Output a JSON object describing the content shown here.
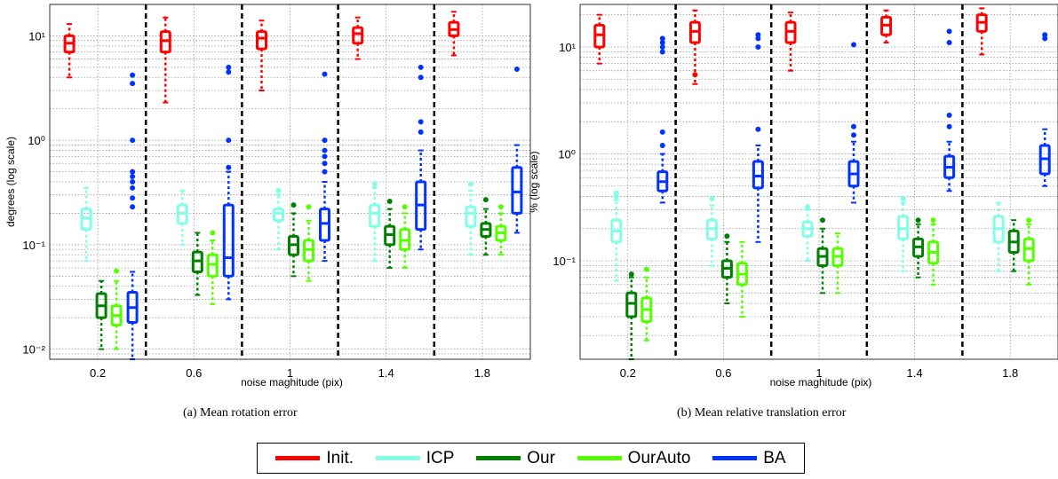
{
  "chart_data": [
    {
      "type": "box",
      "caption": "(a)  Mean rotation error",
      "ylabel": "degrees (log scale)",
      "xlabel": "noise maghitude (pix)",
      "yscale": "log",
      "ylim": [
        0.008,
        20
      ],
      "ytick_values": [
        0.01,
        0.1,
        1,
        10
      ],
      "ytick_labels": [
        "10⁻²",
        "10⁻¹",
        "10⁰",
        "10¹"
      ],
      "grid": true,
      "groups": [
        "0.2",
        "0.6",
        "1",
        "1.4",
        "1.8"
      ],
      "series": [
        {
          "name": "Init.",
          "color": "#ff0000",
          "stats": [
            {
              "lw": 4,
              "q1": 7,
              "med": 8.5,
              "q3": 10,
              "uw": 13,
              "out": []
            },
            {
              "lw": 2.3,
              "q1": 7,
              "med": 9,
              "q3": 11,
              "uw": 15,
              "out": []
            },
            {
              "lw": 3,
              "q1": 7.5,
              "med": 9.5,
              "q3": 11,
              "uw": 14,
              "out": []
            },
            {
              "lw": 6,
              "q1": 8.5,
              "med": 10.5,
              "q3": 12,
              "uw": 15,
              "out": []
            },
            {
              "lw": 6.5,
              "q1": 10,
              "med": 11.5,
              "q3": 13.5,
              "uw": 17,
              "out": []
            }
          ]
        },
        {
          "name": "ICP",
          "color": "#80ffe6",
          "stats": [
            {
              "lw": 0.07,
              "q1": 0.14,
              "med": 0.18,
              "q3": 0.22,
              "uw": 0.35,
              "out": []
            },
            {
              "lw": 0.1,
              "q1": 0.16,
              "med": 0.2,
              "q3": 0.24,
              "uw": 0.33,
              "out": []
            },
            {
              "lw": 0.09,
              "q1": 0.17,
              "med": 0.2,
              "q3": 0.22,
              "uw": 0.3,
              "out": [
                0.33
              ]
            },
            {
              "lw": 0.07,
              "q1": 0.15,
              "med": 0.2,
              "q3": 0.24,
              "uw": 0.35,
              "out": [
                0.38
              ]
            },
            {
              "lw": 0.08,
              "q1": 0.15,
              "med": 0.2,
              "q3": 0.23,
              "uw": 0.33,
              "out": [
                0.38
              ]
            }
          ]
        },
        {
          "name": "Our",
          "color": "#008000",
          "stats": [
            {
              "lw": 0.01,
              "q1": 0.02,
              "med": 0.026,
              "q3": 0.034,
              "uw": 0.045,
              "out": []
            },
            {
              "lw": 0.033,
              "q1": 0.055,
              "med": 0.07,
              "q3": 0.085,
              "uw": 0.13,
              "out": []
            },
            {
              "lw": 0.05,
              "q1": 0.08,
              "med": 0.1,
              "q3": 0.12,
              "uw": 0.2,
              "out": [
                0.24
              ]
            },
            {
              "lw": 0.06,
              "q1": 0.1,
              "med": 0.125,
              "q3": 0.15,
              "uw": 0.22,
              "out": [
                0.26
              ]
            },
            {
              "lw": 0.08,
              "q1": 0.12,
              "med": 0.14,
              "q3": 0.16,
              "uw": 0.22,
              "out": [
                0.27
              ]
            }
          ]
        },
        {
          "name": "OurAuto",
          "color": "#55ff00",
          "stats": [
            {
              "lw": 0.01,
              "q1": 0.017,
              "med": 0.021,
              "q3": 0.026,
              "uw": 0.045,
              "out": [
                0.056
              ]
            },
            {
              "lw": 0.027,
              "q1": 0.05,
              "med": 0.065,
              "q3": 0.08,
              "uw": 0.11,
              "out": [
                0.13
              ]
            },
            {
              "lw": 0.045,
              "q1": 0.07,
              "med": 0.09,
              "q3": 0.11,
              "uw": 0.17,
              "out": [
                0.23
              ]
            },
            {
              "lw": 0.06,
              "q1": 0.09,
              "med": 0.11,
              "q3": 0.14,
              "uw": 0.2,
              "out": [
                0.23
              ]
            },
            {
              "lw": 0.08,
              "q1": 0.11,
              "med": 0.13,
              "q3": 0.15,
              "uw": 0.2,
              "out": [
                0.23
              ]
            }
          ]
        },
        {
          "name": "BA",
          "color": "#0033ff",
          "stats": [
            {
              "lw": 0.008,
              "q1": 0.018,
              "med": 0.025,
              "q3": 0.035,
              "uw": 0.055,
              "out": [
                0.23,
                0.28,
                0.35,
                0.4,
                0.45,
                0.5,
                1,
                3.5,
                4.2
              ]
            },
            {
              "lw": 0.03,
              "q1": 0.05,
              "med": 0.075,
              "q3": 0.24,
              "uw": 0.5,
              "out": [
                0.55,
                1,
                4.5,
                5
              ]
            },
            {
              "lw": 0.07,
              "q1": 0.11,
              "med": 0.16,
              "q3": 0.22,
              "uw": 0.4,
              "out": [
                0.5,
                0.6,
                0.7,
                0.8,
                1,
                4.3
              ]
            },
            {
              "lw": 0.09,
              "q1": 0.14,
              "med": 0.24,
              "q3": 0.4,
              "uw": 0.8,
              "out": [
                1.2,
                1.5,
                4,
                5
              ]
            },
            {
              "lw": 0.13,
              "q1": 0.2,
              "med": 0.32,
              "q3": 0.55,
              "uw": 0.9,
              "out": [
                4.8
              ]
            }
          ]
        }
      ]
    },
    {
      "type": "box",
      "caption": "(b)  Mean relative translation error",
      "ylabel": "% (log scale)",
      "xlabel": "noise maghitude (pix)",
      "yscale": "log",
      "ylim": [
        0.012,
        25
      ],
      "ytick_values": [
        0.1,
        1,
        10
      ],
      "ytick_labels": [
        "10⁻¹",
        "10⁰",
        "10¹"
      ],
      "grid": true,
      "groups": [
        "0.2",
        "0.6",
        "1",
        "1.4",
        "1.8"
      ],
      "series": [
        {
          "name": "Init.",
          "color": "#ff0000",
          "stats": [
            {
              "lw": 7,
              "q1": 10,
              "med": 13,
              "q3": 16,
              "uw": 20,
              "out": []
            },
            {
              "lw": 4.5,
              "q1": 11,
              "med": 14,
              "q3": 17,
              "uw": 22,
              "out": [
                5.5
              ]
            },
            {
              "lw": 6,
              "q1": 11,
              "med": 14,
              "q3": 17,
              "uw": 21,
              "out": []
            },
            {
              "lw": 11,
              "q1": 13,
              "med": 16,
              "q3": 19,
              "uw": 22,
              "out": []
            },
            {
              "lw": 8.5,
              "q1": 14,
              "med": 17,
              "q3": 20,
              "uw": 23,
              "out": []
            }
          ]
        },
        {
          "name": "ICP",
          "color": "#80ffe6",
          "stats": [
            {
              "lw": 0.065,
              "q1": 0.15,
              "med": 0.19,
              "q3": 0.24,
              "uw": 0.37,
              "out": [
                0.4,
                0.43
              ]
            },
            {
              "lw": 0.09,
              "q1": 0.16,
              "med": 0.2,
              "q3": 0.24,
              "uw": 0.33,
              "out": [
                0.38
              ]
            },
            {
              "lw": 0.1,
              "q1": 0.17,
              "med": 0.2,
              "q3": 0.23,
              "uw": 0.3,
              "out": [
                0.32
              ]
            },
            {
              "lw": 0.08,
              "q1": 0.16,
              "med": 0.2,
              "q3": 0.26,
              "uw": 0.35,
              "out": [
                0.38
              ]
            },
            {
              "lw": 0.08,
              "q1": 0.15,
              "med": 0.2,
              "q3": 0.26,
              "uw": 0.35,
              "out": []
            }
          ]
        },
        {
          "name": "Our",
          "color": "#008000",
          "stats": [
            {
              "lw": 0.012,
              "q1": 0.03,
              "med": 0.04,
              "q3": 0.05,
              "uw": 0.07,
              "out": [
                0.075
              ]
            },
            {
              "lw": 0.04,
              "q1": 0.07,
              "med": 0.085,
              "q3": 0.1,
              "uw": 0.15,
              "out": [
                0.17
              ]
            },
            {
              "lw": 0.05,
              "q1": 0.09,
              "med": 0.11,
              "q3": 0.13,
              "uw": 0.2,
              "out": [
                0.24
              ]
            },
            {
              "lw": 0.07,
              "q1": 0.11,
              "med": 0.135,
              "q3": 0.16,
              "uw": 0.22,
              "out": [
                0.24
              ]
            },
            {
              "lw": 0.08,
              "q1": 0.12,
              "med": 0.15,
              "q3": 0.19,
              "uw": 0.24,
              "out": []
            }
          ]
        },
        {
          "name": "OurAuto",
          "color": "#55ff00",
          "stats": [
            {
              "lw": 0.018,
              "q1": 0.027,
              "med": 0.035,
              "q3": 0.045,
              "uw": 0.07,
              "out": [
                0.083
              ]
            },
            {
              "lw": 0.03,
              "q1": 0.06,
              "med": 0.075,
              "q3": 0.095,
              "uw": 0.15,
              "out": []
            },
            {
              "lw": 0.05,
              "q1": 0.09,
              "med": 0.11,
              "q3": 0.13,
              "uw": 0.18,
              "out": []
            },
            {
              "lw": 0.06,
              "q1": 0.095,
              "med": 0.12,
              "q3": 0.15,
              "uw": 0.22,
              "out": [
                0.24
              ]
            },
            {
              "lw": 0.06,
              "q1": 0.1,
              "med": 0.13,
              "q3": 0.16,
              "uw": 0.22,
              "out": [
                0.24
              ]
            }
          ]
        },
        {
          "name": "BA",
          "color": "#0033ff",
          "stats": [
            {
              "lw": 0.35,
              "q1": 0.45,
              "med": 0.55,
              "q3": 0.68,
              "uw": 1,
              "out": [
                1.2,
                1.6,
                9,
                10,
                11,
                12
              ]
            },
            {
              "lw": 0.15,
              "q1": 0.48,
              "med": 0.62,
              "q3": 0.85,
              "uw": 1.2,
              "out": [
                1.7,
                10,
                12,
                13
              ]
            },
            {
              "lw": 0.35,
              "q1": 0.5,
              "med": 0.65,
              "q3": 0.85,
              "uw": 1.3,
              "out": [
                1.5,
                1.8,
                10.5
              ]
            },
            {
              "lw": 0.45,
              "q1": 0.6,
              "med": 0.75,
              "q3": 0.95,
              "uw": 1.3,
              "out": [
                1.8,
                2.3,
                11,
                14
              ]
            },
            {
              "lw": 0.5,
              "q1": 0.65,
              "med": 0.9,
              "q3": 1.2,
              "uw": 1.7,
              "out": [
                12,
                13
              ]
            }
          ]
        }
      ]
    }
  ]
}
